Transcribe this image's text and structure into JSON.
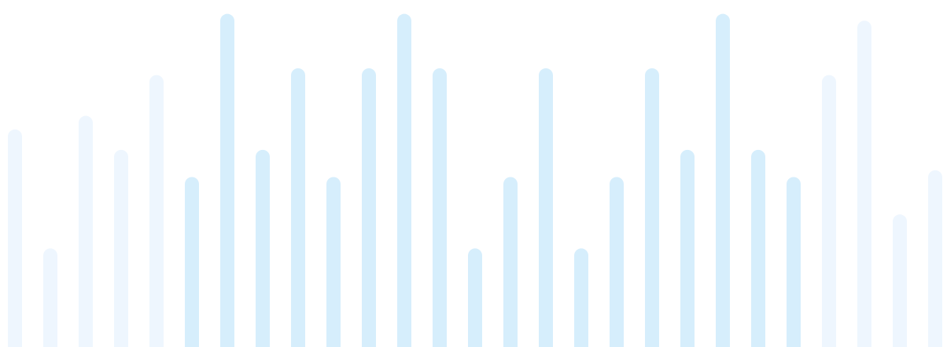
{
  "decoration": {
    "kind": "equalizer-bars",
    "colors": {
      "pale": "#eef6fe",
      "light": "#d6eefc",
      "background": "#ffffff"
    },
    "bars": [
      {
        "level": 0.64,
        "tone": "pale"
      },
      {
        "level": 0.29,
        "tone": "pale"
      },
      {
        "level": 0.68,
        "tone": "pale"
      },
      {
        "level": 0.58,
        "tone": "pale"
      },
      {
        "level": 0.8,
        "tone": "pale"
      },
      {
        "level": 0.5,
        "tone": "light"
      },
      {
        "level": 0.98,
        "tone": "light"
      },
      {
        "level": 0.58,
        "tone": "light"
      },
      {
        "level": 0.82,
        "tone": "light"
      },
      {
        "level": 0.5,
        "tone": "light"
      },
      {
        "level": 0.82,
        "tone": "light"
      },
      {
        "level": 0.98,
        "tone": "light"
      },
      {
        "level": 0.82,
        "tone": "light"
      },
      {
        "level": 0.29,
        "tone": "light"
      },
      {
        "level": 0.5,
        "tone": "light"
      },
      {
        "level": 0.82,
        "tone": "light"
      },
      {
        "level": 0.29,
        "tone": "light"
      },
      {
        "level": 0.5,
        "tone": "light"
      },
      {
        "level": 0.82,
        "tone": "light"
      },
      {
        "level": 0.58,
        "tone": "light"
      },
      {
        "level": 0.98,
        "tone": "light"
      },
      {
        "level": 0.58,
        "tone": "light"
      },
      {
        "level": 0.5,
        "tone": "light"
      },
      {
        "level": 0.8,
        "tone": "pale"
      },
      {
        "level": 0.96,
        "tone": "pale"
      },
      {
        "level": 0.39,
        "tone": "pale"
      },
      {
        "level": 0.52,
        "tone": "pale"
      }
    ]
  }
}
